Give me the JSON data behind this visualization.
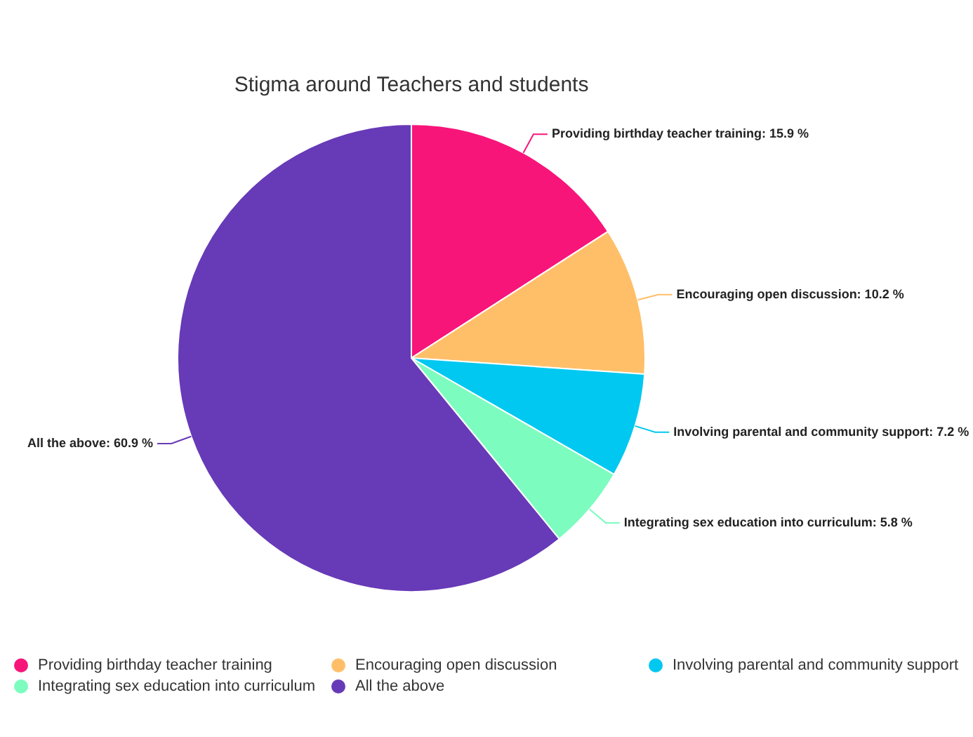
{
  "chart_data": {
    "type": "pie",
    "title": "Stigma around Teachers and students",
    "categories": [
      "Providing birthday teacher training",
      "Encouraging open discussion",
      "Involving parental and community support",
      "Integrating sex education into curriculum",
      "All the above"
    ],
    "values": [
      15.9,
      10.2,
      7.2,
      5.8,
      60.9
    ],
    "colors": [
      "#f7157a",
      "#ffbf69",
      "#00c8f0",
      "#7dfcc0",
      "#673ab7"
    ],
    "value_labels": [
      "Providing birthday teacher training: 15.9 %",
      "Encouraging open discussion: 10.2 %",
      "Involving parental and community support: 7.2 %",
      "Integrating sex education into curriculum: 5.8 %",
      "All the above: 60.9 %"
    ],
    "legend": "bottom"
  }
}
